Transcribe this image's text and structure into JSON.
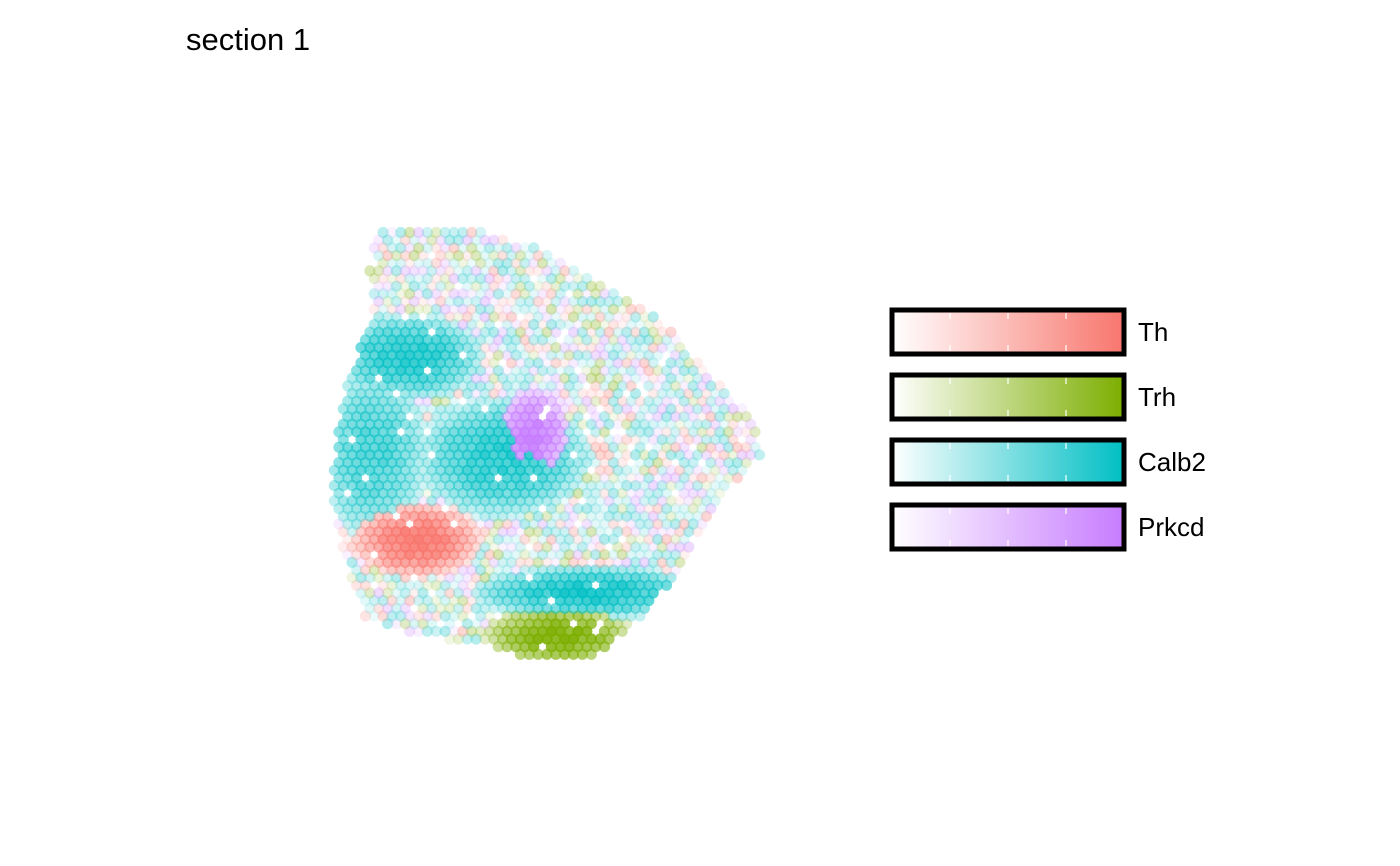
{
  "title": "section 1",
  "chart_data": {
    "type": "scatter",
    "title": "section 1",
    "xlabel": "",
    "ylabel": "",
    "grid": false,
    "legend_position": "right",
    "point_style": "hexagonal spot grid, color = dominant gene, opacity = relative expression",
    "series": [
      {
        "name": "Th",
        "color": "#F8766D",
        "low_color": "#FFFFFF"
      },
      {
        "name": "Trh",
        "color": "#7CAE00",
        "low_color": "#FFFFFF"
      },
      {
        "name": "Calb2",
        "color": "#00BFC4",
        "low_color": "#FFFFFF"
      },
      {
        "name": "Prkcd",
        "color": "#C77CFF",
        "low_color": "#FFFFFF"
      }
    ],
    "hotspots": [
      {
        "gene": "Prkcd",
        "x": 0.47,
        "y": 0.52,
        "rx": 0.07,
        "ry": 0.09,
        "peak": 1.0
      },
      {
        "gene": "Th",
        "x": 0.2,
        "y": 0.28,
        "rx": 0.12,
        "ry": 0.07,
        "peak": 1.0
      },
      {
        "gene": "Trh",
        "x": 0.53,
        "y": 0.06,
        "rx": 0.14,
        "ry": 0.06,
        "peak": 1.0
      },
      {
        "gene": "Calb2",
        "x": 0.6,
        "y": 0.16,
        "rx": 0.22,
        "ry": 0.05,
        "peak": 0.9
      },
      {
        "gene": "Calb2",
        "x": 0.18,
        "y": 0.7,
        "rx": 0.14,
        "ry": 0.08,
        "peak": 0.85
      },
      {
        "gene": "Calb2",
        "x": 0.4,
        "y": 0.47,
        "rx": 0.16,
        "ry": 0.11,
        "peak": 0.8
      },
      {
        "gene": "Calb2",
        "x": 0.1,
        "y": 0.48,
        "rx": 0.1,
        "ry": 0.16,
        "peak": 0.6
      }
    ]
  }
}
